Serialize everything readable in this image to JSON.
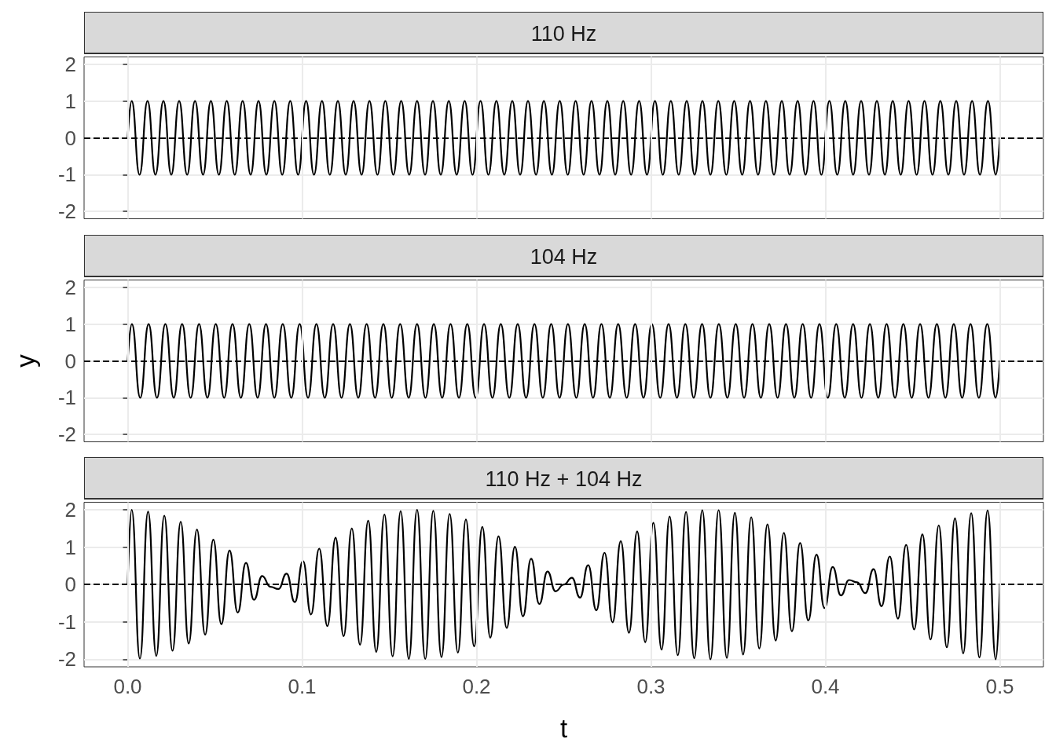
{
  "chart_data": [
    {
      "type": "line",
      "title": "110 Hz",
      "xlim": [
        -0.025,
        0.525
      ],
      "ylim": [
        -2.2,
        2.2
      ],
      "yticks": [
        -2,
        -1,
        0,
        1,
        2
      ],
      "grid": true,
      "tick_labels": "y",
      "series": [
        {
          "color": "#000000",
          "x": [
            0,
            0.0023,
            0.0068,
            0.0114,
            0.0159,
            0.0205,
            0.025,
            0.0295,
            0.0341,
            0.0386,
            0.0432,
            0.0477,
            0.0523,
            0.0568,
            0.0614,
            0.0659,
            0.0705,
            0.075,
            0.0795,
            0.0841,
            0.0886,
            0.0932,
            0.0977,
            0.1023,
            0.1068,
            0.1114,
            0.1159,
            0.1205,
            0.125,
            0.1295,
            0.1341,
            0.1386,
            0.1432,
            0.1477,
            0.1523,
            0.1568,
            0.1614,
            0.1659,
            0.1705,
            0.175,
            0.1795,
            0.1841,
            0.1886,
            0.1932,
            0.1977,
            0.2023,
            0.2068,
            0.2114,
            0.2159,
            0.2205,
            0.225,
            0.2295,
            0.2341,
            0.2386,
            0.2432,
            0.2477,
            0.2523,
            0.2568,
            0.2614,
            0.2659,
            0.2705,
            0.275,
            0.2795,
            0.2841,
            0.2886,
            0.2932,
            0.2977,
            0.3023,
            0.3068,
            0.3114,
            0.3159,
            0.3205,
            0.325,
            0.3295,
            0.3341,
            0.3386,
            0.3432,
            0.3477,
            0.3523,
            0.3568,
            0.3614,
            0.3659,
            0.3705,
            0.375,
            0.3795,
            0.3841,
            0.3886,
            0.3932,
            0.3977,
            0.4023,
            0.4068,
            0.4114,
            0.4159,
            0.4205,
            0.425,
            0.4295,
            0.4341,
            0.4386,
            0.4432,
            0.4477,
            0.4523,
            0.4568,
            0.4614,
            0.4659,
            0.4705,
            0.475,
            0.4795,
            0.4841,
            0.4886,
            0.4932,
            0.4977,
            0.5
          ],
          "values": [
            0,
            1,
            -1,
            1,
            -1,
            1,
            -1,
            1,
            -1,
            1,
            -1,
            1,
            -1,
            1,
            -1,
            1,
            -1,
            1,
            -1,
            1,
            -1,
            1,
            -1,
            1,
            -1,
            1,
            -1,
            1,
            -1,
            1,
            -1,
            1,
            -1,
            1,
            -1,
            1,
            -1,
            1,
            -1,
            1,
            -1,
            1,
            -1,
            1,
            -1,
            1,
            -1,
            1,
            -1,
            1,
            -1,
            1,
            -1,
            1,
            -1,
            1,
            -1,
            1,
            -1,
            1,
            -1,
            1,
            -1,
            1,
            -1,
            1,
            -1,
            1,
            -1,
            1,
            -1,
            1,
            -1,
            1,
            -1,
            1,
            -1,
            1,
            -1,
            1,
            -1,
            1,
            -1,
            1,
            -1,
            1,
            -1,
            1,
            -1,
            1,
            -1,
            1,
            -1,
            1,
            -1,
            1,
            -1,
            1,
            -1,
            1,
            -1,
            1,
            -1,
            1,
            -1,
            1,
            -1,
            1,
            -1,
            1,
            -1,
            0
          ]
        }
      ],
      "ref_lines": [
        {
          "axis": "y",
          "value": 0,
          "color": "#000000",
          "line_style": "dashed"
        }
      ]
    },
    {
      "type": "line",
      "title": "104 Hz",
      "ylabel": "y",
      "xlim": [
        -0.025,
        0.525
      ],
      "ylim": [
        -2.2,
        2.2
      ],
      "yticks": [
        -2,
        -1,
        0,
        1,
        2
      ],
      "grid": true,
      "tick_labels": "y",
      "series": [
        {
          "color": "#000000",
          "x": [
            0,
            0.0024,
            0.0072,
            0.012,
            0.0168,
            0.0216,
            0.0264,
            0.0312,
            0.0361,
            0.0409,
            0.0457,
            0.0505,
            0.0553,
            0.0601,
            0.0649,
            0.0697,
            0.0745,
            0.0793,
            0.0841,
            0.0889,
            0.0938,
            0.0986,
            0.1034,
            0.1082,
            0.113,
            0.1178,
            0.1226,
            0.1274,
            0.1322,
            0.137,
            0.1418,
            0.1466,
            0.1514,
            0.1562,
            0.1611,
            0.1659,
            0.1707,
            0.1755,
            0.1803,
            0.1851,
            0.1899,
            0.1947,
            0.1995,
            0.2043,
            0.2091,
            0.2139,
            0.2188,
            0.2236,
            0.2284,
            0.2332,
            0.238,
            0.2428,
            0.2476,
            0.2524,
            0.2572,
            0.262,
            0.2668,
            0.2716,
            0.2764,
            0.2812,
            0.2861,
            0.2909,
            0.2957,
            0.3005,
            0.3053,
            0.3101,
            0.3149,
            0.3197,
            0.3245,
            0.3293,
            0.3341,
            0.3389,
            0.3438,
            0.3486,
            0.3534,
            0.3582,
            0.363,
            0.3678,
            0.3726,
            0.3774,
            0.3822,
            0.387,
            0.3918,
            0.3966,
            0.4014,
            0.4062,
            0.4111,
            0.4159,
            0.4207,
            0.4255,
            0.4303,
            0.4351,
            0.4399,
            0.4447,
            0.4495,
            0.4543,
            0.4591,
            0.4639,
            0.4688,
            0.4736,
            0.4784,
            0.4832,
            0.488,
            0.4928,
            0.4976,
            0.5
          ],
          "values": [
            0,
            1,
            -1,
            1,
            -1,
            1,
            -1,
            1,
            -1,
            1,
            -1,
            1,
            -1,
            1,
            -1,
            1,
            -1,
            1,
            -1,
            1,
            -1,
            1,
            -1,
            1,
            -1,
            1,
            -1,
            1,
            -1,
            1,
            -1,
            1,
            -1,
            1,
            -1,
            1,
            -1,
            1,
            -1,
            1,
            -1,
            1,
            -1,
            1,
            -1,
            1,
            -1,
            1,
            -1,
            1,
            -1,
            1,
            -1,
            1,
            -1,
            1,
            -1,
            1,
            -1,
            1,
            -1,
            1,
            -1,
            1,
            -1,
            1,
            -1,
            1,
            -1,
            1,
            -1,
            1,
            -1,
            1,
            -1,
            1,
            -1,
            1,
            -1,
            1,
            -1,
            1,
            -1,
            1,
            -1,
            1,
            -1,
            1,
            -1,
            1,
            -1,
            1,
            -1,
            1,
            -1,
            1,
            -1,
            1,
            -1,
            1,
            -1,
            1,
            -1,
            1,
            -1,
            0
          ]
        }
      ],
      "ref_lines": [
        {
          "axis": "y",
          "value": 0,
          "color": "#000000",
          "line_style": "dashed"
        }
      ]
    },
    {
      "type": "line",
      "title": "110 Hz + 104 Hz",
      "xlabel": "t",
      "xlim": [
        -0.025,
        0.525
      ],
      "ylim": [
        -2.2,
        2.2
      ],
      "xticks": [
        {
          "value": 0,
          "label": "0.0"
        },
        0.1,
        0.2,
        0.3,
        0.4,
        0.5
      ],
      "yticks": [
        -2,
        -1,
        0,
        1,
        2
      ],
      "grid": true,
      "series": [
        {
          "color": "#000000",
          "x": [
            0,
            0.0023,
            0.007,
            0.0117,
            0.0164,
            0.021,
            0.0257,
            0.0304,
            0.035,
            0.0397,
            0.0444,
            0.0491,
            0.0537,
            0.0584,
            0.0631,
            0.0678,
            0.0724,
            0.0771,
            0.0818,
            0.0864,
            0.0911,
            0.0958,
            0.1005,
            0.1051,
            0.1098,
            0.1145,
            0.1192,
            0.1238,
            0.1285,
            0.1332,
            0.1379,
            0.1425,
            0.1472,
            0.1519,
            0.1565,
            0.1612,
            0.1659,
            0.1706,
            0.1752,
            0.1799,
            0.1846,
            0.1893,
            0.1939,
            0.1986,
            0.2033,
            0.2079,
            0.2126,
            0.2173,
            0.222,
            0.2266,
            0.2313,
            0.236,
            0.2407,
            0.2453,
            0.25,
            0.2547,
            0.2593,
            0.264,
            0.2687,
            0.2734,
            0.278,
            0.2827,
            0.2874,
            0.2921,
            0.2967,
            0.3014,
            0.3061,
            0.3107,
            0.3154,
            0.3201,
            0.3248,
            0.3294,
            0.3341,
            0.3388,
            0.3435,
            0.3481,
            0.3528,
            0.3575,
            0.3621,
            0.3668,
            0.3715,
            0.3762,
            0.3808,
            0.3855,
            0.3902,
            0.3949,
            0.3995,
            0.4042,
            0.4089,
            0.4136,
            0.4182,
            0.4229,
            0.4276,
            0.4322,
            0.4369,
            0.4416,
            0.4463,
            0.4509,
            0.4556,
            0.4603,
            0.465,
            0.4696,
            0.4743,
            0.479,
            0.4836,
            0.4883,
            0.493,
            0.4977,
            0.5
          ],
          "values": [
            0,
            2.0,
            -1.98,
            1.95,
            -1.91,
            1.84,
            -1.77,
            1.68,
            -1.58,
            1.47,
            -1.34,
            1.2,
            -1.06,
            0.91,
            -0.75,
            0.58,
            -0.41,
            0.23,
            -0.06,
            -0.12,
            0.29,
            -0.47,
            0.63,
            -0.8,
            0.96,
            -1.11,
            1.25,
            -1.38,
            1.5,
            -1.61,
            1.71,
            -1.8,
            1.87,
            -1.92,
            1.96,
            -1.99,
            2.0,
            -1.99,
            1.97,
            -1.94,
            1.89,
            -1.82,
            1.74,
            -1.65,
            1.54,
            -1.42,
            1.29,
            -1.16,
            1.01,
            -0.85,
            0.69,
            -0.52,
            0.35,
            -0.18,
            0.0,
            0.18,
            -0.35,
            0.52,
            -0.69,
            0.85,
            -1.01,
            1.16,
            -1.29,
            1.42,
            -1.54,
            1.65,
            -1.74,
            1.82,
            -1.89,
            1.94,
            -1.97,
            1.99,
            -2.0,
            1.99,
            -1.96,
            1.92,
            -1.87,
            1.8,
            -1.71,
            1.61,
            -1.5,
            1.38,
            -1.25,
            1.11,
            -0.96,
            0.8,
            -0.63,
            0.47,
            -0.29,
            0.12,
            0.06,
            -0.23,
            0.41,
            -0.58,
            0.75,
            -0.91,
            1.06,
            -1.2,
            1.34,
            -1.47,
            1.58,
            -1.68,
            1.77,
            -1.84,
            1.91,
            -1.95,
            1.98,
            -2.0,
            0
          ]
        }
      ],
      "ref_lines": [
        {
          "axis": "y",
          "value": 0,
          "color": "#000000",
          "line_style": "dashed"
        }
      ]
    }
  ]
}
